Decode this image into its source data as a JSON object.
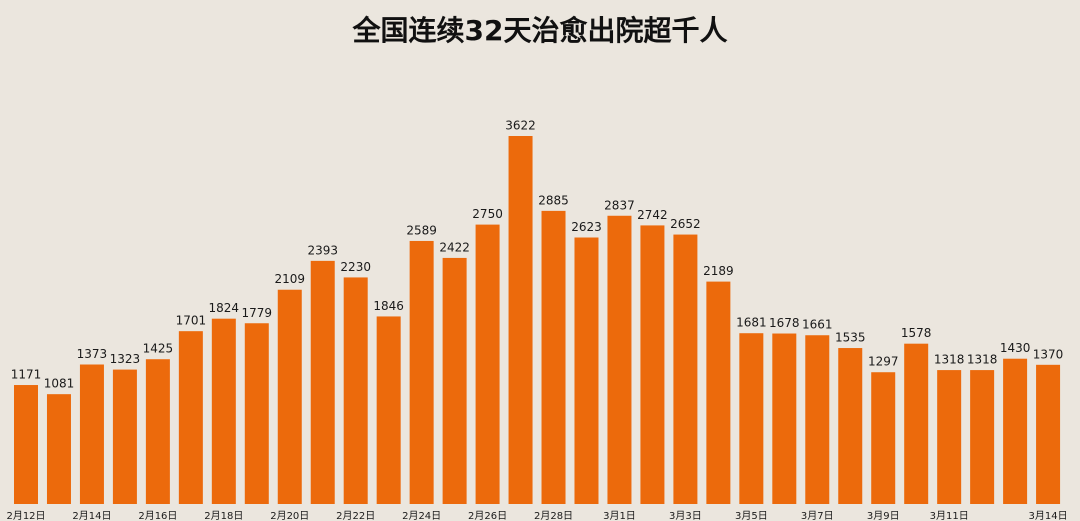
{
  "chart_data": {
    "type": "bar",
    "title": "全国连续32天治愈出院超千人",
    "categories": [
      "2月12日",
      null,
      "2月14日",
      null,
      "2月16日",
      null,
      "2月18日",
      null,
      "2月20日",
      null,
      "2月22日",
      null,
      "2月24日",
      null,
      "2月26日",
      null,
      "2月28日",
      null,
      "3月1日",
      null,
      "3月3日",
      null,
      "3月5日",
      null,
      "3月7日",
      null,
      "3月9日",
      null,
      "3月11日",
      null,
      null,
      "3月14日"
    ],
    "values": [
      1171,
      1081,
      1373,
      1323,
      1425,
      1701,
      1824,
      1779,
      2109,
      2393,
      2230,
      1846,
      2589,
      2422,
      2750,
      3622,
      2885,
      2623,
      2837,
      2742,
      2652,
      2189,
      1681,
      1678,
      1661,
      1535,
      1297,
      1578,
      1318,
      1318,
      1430,
      1370
    ],
    "color": "#ec6a0c"
  }
}
